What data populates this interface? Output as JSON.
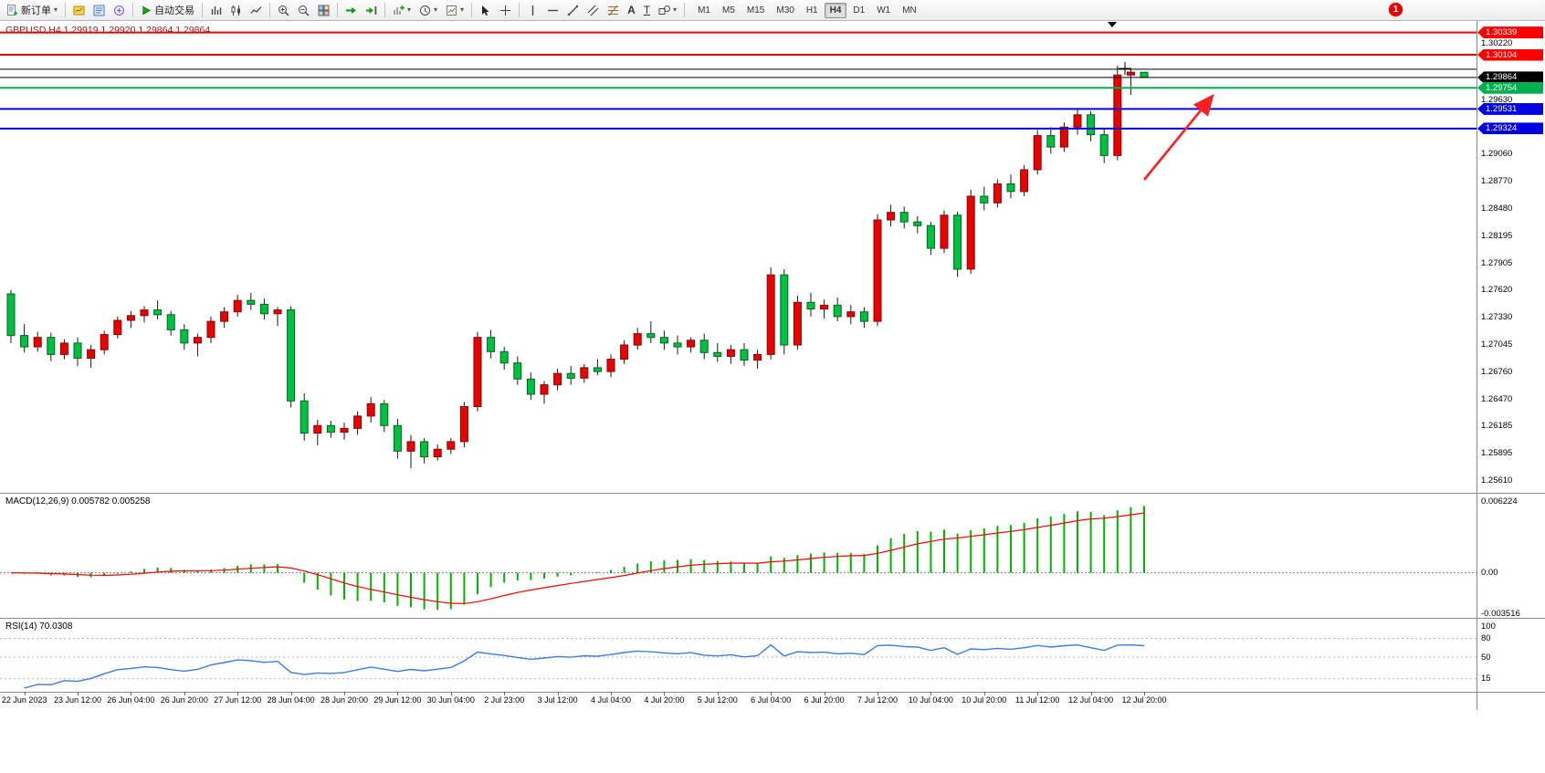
{
  "toolbar": {
    "new_order": "新订单",
    "autotrade": "自动交易",
    "timeframes": [
      "M1",
      "M5",
      "M15",
      "M30",
      "H1",
      "H4",
      "D1",
      "W1",
      "MN"
    ],
    "active_timeframe": "H4",
    "notification_count": "1"
  },
  "chart_data": {
    "type": "candlestick",
    "symbol": "GBPUSD",
    "timeframe": "H4",
    "title": "GBPUSD,H4 1.29919 1.29920 1.29864 1.29864",
    "columns": [
      "open",
      "high",
      "low",
      "close"
    ],
    "candles": [
      [
        1.2758,
        1.2762,
        1.2706,
        1.2714
      ],
      [
        1.2714,
        1.2726,
        1.2696,
        1.2702
      ],
      [
        1.2702,
        1.2718,
        1.2697,
        1.2712
      ],
      [
        1.2712,
        1.2717,
        1.2687,
        1.2694
      ],
      [
        1.2694,
        1.271,
        1.2689,
        1.2706
      ],
      [
        1.2706,
        1.2712,
        1.2682,
        1.269
      ],
      [
        1.269,
        1.2704,
        1.268,
        1.2699
      ],
      [
        1.2699,
        1.2719,
        1.2694,
        1.2715
      ],
      [
        1.2715,
        1.2734,
        1.2711,
        1.273
      ],
      [
        1.273,
        1.274,
        1.2722,
        1.2735
      ],
      [
        1.2735,
        1.2745,
        1.2728,
        1.2741
      ],
      [
        1.2741,
        1.2751,
        1.2731,
        1.2736
      ],
      [
        1.2736,
        1.274,
        1.2714,
        1.272
      ],
      [
        1.272,
        1.2726,
        1.2699,
        1.2706
      ],
      [
        1.2706,
        1.2716,
        1.2692,
        1.2712
      ],
      [
        1.2712,
        1.2734,
        1.2706,
        1.2729
      ],
      [
        1.2729,
        1.2744,
        1.2722,
        1.2739
      ],
      [
        1.2739,
        1.2757,
        1.2734,
        1.2751
      ],
      [
        1.2751,
        1.2759,
        1.2741,
        1.2747
      ],
      [
        1.2747,
        1.2753,
        1.2731,
        1.2737
      ],
      [
        1.2737,
        1.2744,
        1.2724,
        1.2741
      ],
      [
        1.2741,
        1.2745,
        1.2638,
        1.2645
      ],
      [
        1.2645,
        1.2653,
        1.2603,
        1.2611
      ],
      [
        1.2611,
        1.2625,
        1.2598,
        1.2619
      ],
      [
        1.2619,
        1.2624,
        1.2606,
        1.2612
      ],
      [
        1.2612,
        1.2622,
        1.2604,
        1.2616
      ],
      [
        1.2616,
        1.2634,
        1.2609,
        1.2629
      ],
      [
        1.2629,
        1.2649,
        1.2622,
        1.2642
      ],
      [
        1.2642,
        1.2646,
        1.2612,
        1.2619
      ],
      [
        1.2619,
        1.2626,
        1.2584,
        1.2592
      ],
      [
        1.2592,
        1.2609,
        1.2574,
        1.2602
      ],
      [
        1.2602,
        1.2606,
        1.2579,
        1.2586
      ],
      [
        1.2586,
        1.2599,
        1.2582,
        1.2594
      ],
      [
        1.2594,
        1.2606,
        1.2589,
        1.2602
      ],
      [
        1.2602,
        1.2644,
        1.2596,
        1.2639
      ],
      [
        1.2639,
        1.2718,
        1.2634,
        1.2712
      ],
      [
        1.2712,
        1.272,
        1.269,
        1.2697
      ],
      [
        1.2697,
        1.2702,
        1.2678,
        1.2685
      ],
      [
        1.2685,
        1.2692,
        1.2662,
        1.2668
      ],
      [
        1.2668,
        1.2675,
        1.2646,
        1.2652
      ],
      [
        1.2652,
        1.2666,
        1.2642,
        1.2662
      ],
      [
        1.2662,
        1.2679,
        1.2656,
        1.2674
      ],
      [
        1.2674,
        1.2682,
        1.2662,
        1.2669
      ],
      [
        1.2669,
        1.2684,
        1.2664,
        1.268
      ],
      [
        1.268,
        1.2689,
        1.2672,
        1.2676
      ],
      [
        1.2676,
        1.2694,
        1.267,
        1.2689
      ],
      [
        1.2689,
        1.2709,
        1.2684,
        1.2704
      ],
      [
        1.2704,
        1.2722,
        1.2699,
        1.2716
      ],
      [
        1.2716,
        1.2729,
        1.2706,
        1.2712
      ],
      [
        1.2712,
        1.2719,
        1.2699,
        1.2706
      ],
      [
        1.2706,
        1.2714,
        1.2694,
        1.2702
      ],
      [
        1.2702,
        1.2712,
        1.2696,
        1.2709
      ],
      [
        1.2709,
        1.2716,
        1.2689,
        1.2696
      ],
      [
        1.2696,
        1.2706,
        1.2686,
        1.2692
      ],
      [
        1.2692,
        1.2704,
        1.2684,
        1.2699
      ],
      [
        1.2699,
        1.2706,
        1.2682,
        1.2688
      ],
      [
        1.2688,
        1.2699,
        1.2679,
        1.2694
      ],
      [
        1.2694,
        1.2786,
        1.2689,
        1.2778
      ],
      [
        1.2778,
        1.2784,
        1.2694,
        1.2704
      ],
      [
        1.2704,
        1.2756,
        1.2699,
        1.2749
      ],
      [
        1.2749,
        1.2759,
        1.2734,
        1.2742
      ],
      [
        1.2742,
        1.2752,
        1.2732,
        1.2746
      ],
      [
        1.2746,
        1.2754,
        1.2729,
        1.2734
      ],
      [
        1.2734,
        1.2746,
        1.2726,
        1.2739
      ],
      [
        1.2739,
        1.2744,
        1.2722,
        1.2729
      ],
      [
        1.2729,
        1.2842,
        1.2724,
        1.2836
      ],
      [
        1.2836,
        1.2852,
        1.2829,
        1.2844
      ],
      [
        1.2844,
        1.285,
        1.2827,
        1.2834
      ],
      [
        1.2834,
        1.284,
        1.2822,
        1.283
      ],
      [
        1.283,
        1.2834,
        1.2799,
        1.2806
      ],
      [
        1.2806,
        1.2846,
        1.2801,
        1.2841
      ],
      [
        1.2841,
        1.2845,
        1.2776,
        1.2784
      ],
      [
        1.2784,
        1.2868,
        1.2779,
        1.2861
      ],
      [
        1.2861,
        1.2871,
        1.2846,
        1.2854
      ],
      [
        1.2854,
        1.2879,
        1.2849,
        1.2874
      ],
      [
        1.2874,
        1.2884,
        1.2859,
        1.2866
      ],
      [
        1.2866,
        1.2894,
        1.2861,
        1.2889
      ],
      [
        1.2889,
        1.2931,
        1.2884,
        1.2925
      ],
      [
        1.2925,
        1.2934,
        1.2906,
        1.2913
      ],
      [
        1.2913,
        1.2939,
        1.2908,
        1.2934
      ],
      [
        1.2934,
        1.2954,
        1.2926,
        1.2947
      ],
      [
        1.2947,
        1.2951,
        1.2919,
        1.2926
      ],
      [
        1.2926,
        1.2933,
        1.2896,
        1.2904
      ],
      [
        1.2904,
        1.2999,
        1.2899,
        1.2989
      ],
      [
        1.2989,
        1.2996,
        1.2968,
        1.2992
      ],
      [
        1.29919,
        1.2992,
        1.29864,
        1.29864
      ]
    ],
    "time_axis_labels": [
      "22 Jun 2023",
      "23 Jun 12:00",
      "26 Jun 04:00",
      "26 Jun 20:00",
      "27 Jun 12:00",
      "28 Jun 04:00",
      "28 Jun 20:00",
      "29 Jun 12:00",
      "30 Jun 04:00",
      "2 Jul 23:00",
      "3 Jul 12:00",
      "4 Jul 04:00",
      "4 Jul 20:00",
      "5 Jul 12:00",
      "6 Jul 04:00",
      "6 Jul 20:00",
      "7 Jul 12:00",
      "10 Jul 04:00",
      "10 Jul 20:00",
      "11 Jul 12:00",
      "12 Jul 04:00",
      "12 Jul 20:00"
    ],
    "first_label_index": 1,
    "label_every_n_candles": 4,
    "y_axis_ticks": [
      "1.30220",
      "1.29630",
      "1.29060",
      "1.28770",
      "1.28480",
      "1.28195",
      "1.27905",
      "1.27620",
      "1.27330",
      "1.27045",
      "1.26760",
      "1.26470",
      "1.26185",
      "1.25895",
      "1.25610"
    ],
    "y_range": {
      "top": 1.3046,
      "bottom": 1.2547
    },
    "horizontal_lines": [
      {
        "price": 1.30339,
        "label": "1.30339",
        "color": "#ff0000",
        "width": 2
      },
      {
        "price": 1.30104,
        "label": "1.30104",
        "color": "#ff0000",
        "width": 2
      },
      {
        "price": 1.2995,
        "label": "",
        "color": "#000000",
        "width": 1
      },
      {
        "price": 1.29864,
        "label": "1.29864",
        "color": "#000000",
        "width": 1
      },
      {
        "price": 1.29754,
        "label": "1.29754",
        "color": "#00b050",
        "width": 2
      },
      {
        "price": 1.29531,
        "label": "1.29531",
        "color": "#0000e0",
        "width": 2
      },
      {
        "price": 1.29324,
        "label": "1.29324",
        "color": "#0000e0",
        "width": 2
      }
    ],
    "colors": {
      "up": "#e60400",
      "down": "#00c040",
      "wick": "#1a1a1a",
      "up_border": "#8f0000",
      "down_border": "#00651e"
    },
    "macd": {
      "label": "MACD(12,26,9) 0.005782 0.005258",
      "fast": 12,
      "slow": 26,
      "signal": 9,
      "current_main": 0.005782,
      "current_signal": 0.005258,
      "axis_labels": [
        "0.006224",
        "0.00",
        "-0.003516"
      ],
      "y_max": 0.006224,
      "y_min": -0.003516,
      "histogram_color": "#00b400",
      "signal_color": "#ff0000"
    },
    "rsi": {
      "label": "RSI(14) 70.0308",
      "period": 14,
      "current": 70.0308,
      "axis_labels": [
        "100",
        "80",
        "50",
        "15"
      ],
      "level_lines": [
        80,
        50,
        15
      ],
      "line_color": "#3c7ed9"
    },
    "annotation_arrow": {
      "color": "#ff1e1e",
      "from": {
        "x": 1253,
        "y": 174
      },
      "to": {
        "x": 1328,
        "y": 82
      }
    }
  }
}
